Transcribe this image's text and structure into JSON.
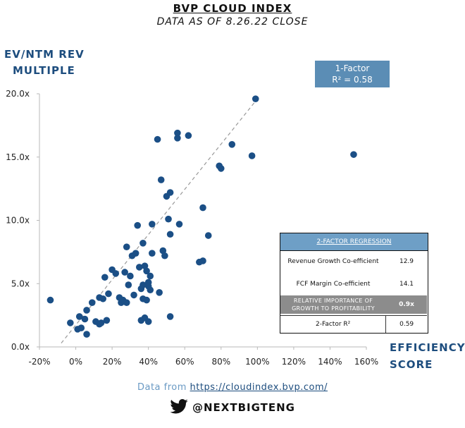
{
  "header": {
    "title": "BVP CLOUD INDEX",
    "subtitle": "DATA AS OF 8.26.22 CLOSE"
  },
  "axes": {
    "ylabel_line1": "EV/NTM REV",
    "ylabel_line2": "MULTIPLE",
    "xlabel_line1": "EFFICIENCY",
    "xlabel_line2": "SCORE"
  },
  "factor_box": {
    "line1": "1-Factor",
    "line2": "R² = 0.58"
  },
  "regression_table": {
    "title": "2-FACTOR REGRESSION",
    "rows": [
      {
        "label": "Revenue Growth Co-efficient",
        "value": "12.9"
      },
      {
        "label": "FCF Margin Co-efficient",
        "value": "14.1"
      },
      {
        "label_line1": "RELATIVE IMPORTANCE OF",
        "label_line2": "GROWTH TO PROFITABILITY",
        "value": "0.9x"
      },
      {
        "label": "2-Factor R²",
        "value": "0.59"
      }
    ]
  },
  "footer": {
    "source_prefix": "Data from ",
    "source_link": "https://cloudindex.bvp.com/",
    "handle": "@NEXTBIGTENG",
    "handle_icon": "twitter-bird-icon"
  },
  "colors": {
    "point": "#1b4f86",
    "trend": "#999999",
    "axis": "#b9b9b9"
  },
  "chart_data": {
    "type": "scatter",
    "xlabel": "EFFICIENCY SCORE",
    "ylabel": "EV/NTM REV MULTIPLE",
    "xlim": [
      -20,
      160
    ],
    "ylim": [
      0,
      20
    ],
    "x_ticks": [
      -20,
      0,
      20,
      40,
      60,
      80,
      100,
      120,
      140,
      160
    ],
    "x_tick_labels": [
      "-20%",
      "0%",
      "20%",
      "40%",
      "60%",
      "80%",
      "100%",
      "120%",
      "140%",
      "160%"
    ],
    "y_ticks": [
      0,
      5,
      10,
      15,
      20
    ],
    "y_tick_labels": [
      "0.0x",
      "5.0x",
      "10.0x",
      "15.0x",
      "20.0x"
    ],
    "trendline": {
      "x": [
        -8,
        100
      ],
      "y": [
        0.3,
        19.6
      ]
    },
    "points": [
      {
        "x": -14,
        "y": 3.7
      },
      {
        "x": -3,
        "y": 1.9
      },
      {
        "x": 1,
        "y": 1.4
      },
      {
        "x": 2,
        "y": 2.4
      },
      {
        "x": 3,
        "y": 1.5
      },
      {
        "x": 5,
        "y": 2.2
      },
      {
        "x": 6,
        "y": 2.9
      },
      {
        "x": 6,
        "y": 1.0
      },
      {
        "x": 9,
        "y": 3.5
      },
      {
        "x": 11,
        "y": 2.0
      },
      {
        "x": 13,
        "y": 1.8
      },
      {
        "x": 13,
        "y": 3.9
      },
      {
        "x": 14,
        "y": 1.9
      },
      {
        "x": 15,
        "y": 3.8
      },
      {
        "x": 16,
        "y": 5.5
      },
      {
        "x": 17,
        "y": 2.1
      },
      {
        "x": 18,
        "y": 4.2
      },
      {
        "x": 20,
        "y": 6.1
      },
      {
        "x": 22,
        "y": 5.8
      },
      {
        "x": 24,
        "y": 3.9
      },
      {
        "x": 25,
        "y": 3.5
      },
      {
        "x": 26,
        "y": 3.7
      },
      {
        "x": 27,
        "y": 5.9
      },
      {
        "x": 28,
        "y": 7.9
      },
      {
        "x": 28,
        "y": 3.5
      },
      {
        "x": 29,
        "y": 4.9
      },
      {
        "x": 30,
        "y": 5.6
      },
      {
        "x": 31,
        "y": 7.2
      },
      {
        "x": 32,
        "y": 4.1
      },
      {
        "x": 33,
        "y": 7.4
      },
      {
        "x": 34,
        "y": 9.6
      },
      {
        "x": 35,
        "y": 6.3
      },
      {
        "x": 36,
        "y": 2.1
      },
      {
        "x": 36,
        "y": 4.6
      },
      {
        "x": 37,
        "y": 4.9
      },
      {
        "x": 37,
        "y": 8.2
      },
      {
        "x": 37,
        "y": 3.8
      },
      {
        "x": 38,
        "y": 6.4
      },
      {
        "x": 38,
        "y": 2.3
      },
      {
        "x": 39,
        "y": 3.7
      },
      {
        "x": 39,
        "y": 6.0
      },
      {
        "x": 40,
        "y": 5.1
      },
      {
        "x": 40,
        "y": 2.0
      },
      {
        "x": 40,
        "y": 4.8
      },
      {
        "x": 41,
        "y": 4.5
      },
      {
        "x": 41,
        "y": 5.6
      },
      {
        "x": 42,
        "y": 7.4
      },
      {
        "x": 42,
        "y": 9.7
      },
      {
        "x": 45,
        "y": 16.4
      },
      {
        "x": 46,
        "y": 4.3
      },
      {
        "x": 47,
        "y": 13.2
      },
      {
        "x": 48,
        "y": 7.6
      },
      {
        "x": 49,
        "y": 7.2
      },
      {
        "x": 50,
        "y": 11.9
      },
      {
        "x": 51,
        "y": 10.1
      },
      {
        "x": 52,
        "y": 12.2
      },
      {
        "x": 52,
        "y": 8.9
      },
      {
        "x": 52,
        "y": 2.4
      },
      {
        "x": 56,
        "y": 16.9
      },
      {
        "x": 56,
        "y": 16.5
      },
      {
        "x": 57,
        "y": 9.7
      },
      {
        "x": 62,
        "y": 16.7
      },
      {
        "x": 68,
        "y": 6.7
      },
      {
        "x": 70,
        "y": 6.8
      },
      {
        "x": 70,
        "y": 11.0
      },
      {
        "x": 73,
        "y": 8.8
      },
      {
        "x": 79,
        "y": 14.3
      },
      {
        "x": 80,
        "y": 14.1
      },
      {
        "x": 86,
        "y": 16.0
      },
      {
        "x": 97,
        "y": 15.1
      },
      {
        "x": 99,
        "y": 19.6
      },
      {
        "x": 153,
        "y": 15.2
      }
    ]
  }
}
